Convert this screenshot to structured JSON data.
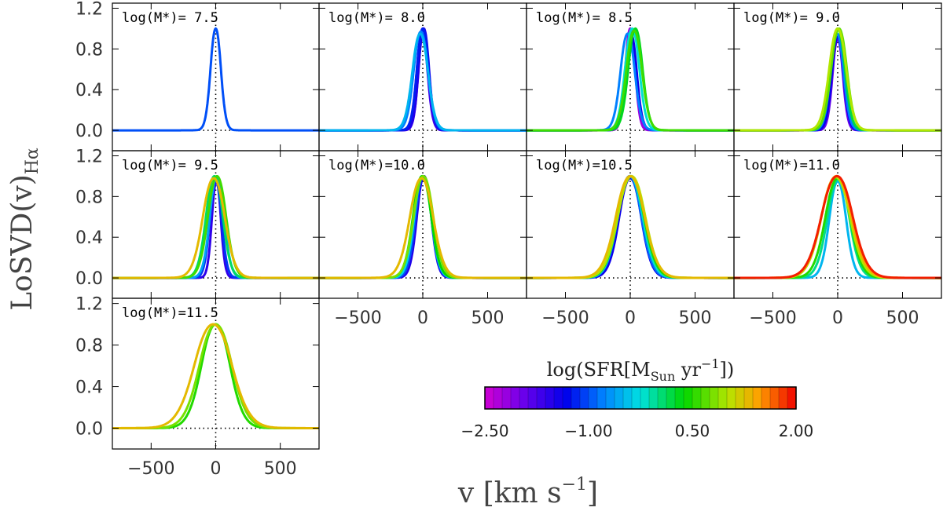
{
  "chart_data": {
    "type": "line",
    "ylabel": "LoSVD(v)",
    "ylabel_sub": "Hα",
    "xlabel": "v [km s",
    "xlabel_sup": "−1",
    "xlabel_close": "]",
    "xlim": [
      -800,
      800
    ],
    "ylim": [
      -0.2,
      1.25
    ],
    "x_ticks": [
      -500,
      0,
      500
    ],
    "x_tick_labels": [
      "−500",
      "0",
      "500"
    ],
    "y_ticks": [
      0.0,
      0.4,
      0.8,
      1.2
    ],
    "y_tick_labels": [
      "0.0",
      "0.4",
      "0.8",
      "1.2"
    ],
    "colorbar": {
      "title": "log(SFR[M",
      "title_sub": "Sun",
      "title_tail": " yr",
      "title_sup": "−1",
      "title_close": "])",
      "range": [
        -2.5,
        2.0
      ],
      "tick_labels": [
        "−2.50",
        "−1.00",
        "0.50",
        "2.00"
      ],
      "tick_values": [
        -2.5,
        -1.0,
        0.5,
        2.0
      ],
      "steps": 36
    },
    "panels": [
      {
        "label": "log(M*)= 7.5",
        "curves": [
          {
            "sfr": -1.0,
            "x0": 0,
            "sigma": 40,
            "peak": 1.0
          }
        ]
      },
      {
        "label": "log(M*)= 8.0",
        "curves": [
          {
            "sfr": -2.0,
            "x0": 5,
            "sigma": 38,
            "peak": 1.0
          },
          {
            "sfr": -1.7,
            "x0": -5,
            "sigma": 42,
            "peak": 0.95
          },
          {
            "sfr": -1.5,
            "x0": 8,
            "sigma": 40,
            "peak": 1.0
          },
          {
            "sfr": -1.2,
            "x0": 0,
            "sigma": 45,
            "peak": 1.0
          },
          {
            "sfr": -0.8,
            "x0": -15,
            "sigma": 55,
            "peak": 0.97
          },
          {
            "sfr": -0.5,
            "x0": -20,
            "sigma": 60,
            "peak": 0.95
          }
        ]
      },
      {
        "label": "log(M*)= 8.5",
        "curves": [
          {
            "sfr": -2.2,
            "x0": 0,
            "sigma": 38,
            "peak": 1.0
          },
          {
            "sfr": -1.4,
            "x0": 5,
            "sigma": 45,
            "peak": 0.95
          },
          {
            "sfr": -0.8,
            "x0": -20,
            "sigma": 55,
            "peak": 0.95
          },
          {
            "sfr": -0.2,
            "x0": 15,
            "sigma": 55,
            "peak": 1.0
          },
          {
            "sfr": 0.3,
            "x0": 40,
            "sigma": 55,
            "peak": 1.0
          },
          {
            "sfr": 0.6,
            "x0": 30,
            "sigma": 60,
            "peak": 0.98
          }
        ]
      },
      {
        "label": "log(M*)= 9.0",
        "curves": [
          {
            "sfr": -1.9,
            "x0": 0,
            "sigma": 40,
            "peak": 0.9
          },
          {
            "sfr": -1.3,
            "x0": 0,
            "sigma": 45,
            "peak": 0.92
          },
          {
            "sfr": -0.8,
            "x0": -5,
            "sigma": 50,
            "peak": 0.95
          },
          {
            "sfr": 0.2,
            "x0": 0,
            "sigma": 55,
            "peak": 1.0
          },
          {
            "sfr": 0.7,
            "x0": 10,
            "sigma": 60,
            "peak": 1.0
          },
          {
            "sfr": 1.0,
            "x0": 0,
            "sigma": 65,
            "peak": 1.0
          }
        ]
      },
      {
        "label": "log(M*)= 9.5",
        "curves": [
          {
            "sfr": -1.6,
            "x0": 5,
            "sigma": 35,
            "peak": 0.95
          },
          {
            "sfr": -1.1,
            "x0": 0,
            "sigma": 45,
            "peak": 0.98
          },
          {
            "sfr": -0.6,
            "x0": 10,
            "sigma": 55,
            "peak": 1.0
          },
          {
            "sfr": 0.1,
            "x0": -10,
            "sigma": 65,
            "peak": 1.0
          },
          {
            "sfr": 0.6,
            "x0": 10,
            "sigma": 70,
            "peak": 1.0
          },
          {
            "sfr": 1.3,
            "x0": -15,
            "sigma": 85,
            "peak": 0.98
          }
        ]
      },
      {
        "label": "log(M*)=10.0",
        "curves": [
          {
            "sfr": -1.5,
            "x0": 10,
            "sigma": 55,
            "peak": 1.0
          },
          {
            "sfr": -1.0,
            "x0": 5,
            "sigma": 60,
            "peak": 1.0
          },
          {
            "sfr": -0.3,
            "x0": 0,
            "sigma": 65,
            "peak": 1.0
          },
          {
            "sfr": 0.4,
            "x0": -5,
            "sigma": 70,
            "peak": 1.0
          },
          {
            "sfr": 0.8,
            "x0": 5,
            "sigma": 75,
            "peak": 1.0
          },
          {
            "sfr": 1.3,
            "x0": -10,
            "sigma": 90,
            "peak": 0.98
          }
        ]
      },
      {
        "label": "log(M*)=10.5",
        "curves": [
          {
            "sfr": -1.4,
            "x0": 0,
            "sigma": 85,
            "peak": 0.98
          },
          {
            "sfr": -0.9,
            "x0": -5,
            "sigma": 90,
            "peak": 1.0
          },
          {
            "sfr": -0.2,
            "x0": 0,
            "sigma": 95,
            "peak": 1.0
          },
          {
            "sfr": 0.5,
            "x0": 5,
            "sigma": 100,
            "peak": 1.0
          },
          {
            "sfr": 1.0,
            "x0": 10,
            "sigma": 105,
            "peak": 1.0
          },
          {
            "sfr": 1.3,
            "x0": 0,
            "sigma": 110,
            "peak": 1.0
          }
        ]
      },
      {
        "label": "log(M*)=11.0",
        "curves": [
          {
            "sfr": -0.5,
            "x0": 0,
            "sigma": 65,
            "peak": 0.95
          },
          {
            "sfr": 0.0,
            "x0": 5,
            "sigma": 85,
            "peak": 0.97
          },
          {
            "sfr": 0.5,
            "x0": 0,
            "sigma": 95,
            "peak": 0.98
          },
          {
            "sfr": 1.0,
            "x0": -15,
            "sigma": 110,
            "peak": 0.99
          },
          {
            "sfr": 1.4,
            "x0": -10,
            "sigma": 115,
            "peak": 1.0
          },
          {
            "sfr": 1.9,
            "x0": -5,
            "sigma": 120,
            "peak": 1.0
          }
        ]
      },
      {
        "label": "log(M*)=11.5",
        "curves": [
          {
            "sfr": 0.5,
            "x0": 0,
            "sigma": 110,
            "peak": 1.0
          },
          {
            "sfr": 0.8,
            "x0": 0,
            "sigma": 125,
            "peak": 1.0
          },
          {
            "sfr": 1.3,
            "x0": -20,
            "sigma": 145,
            "peak": 1.0
          }
        ]
      }
    ]
  }
}
